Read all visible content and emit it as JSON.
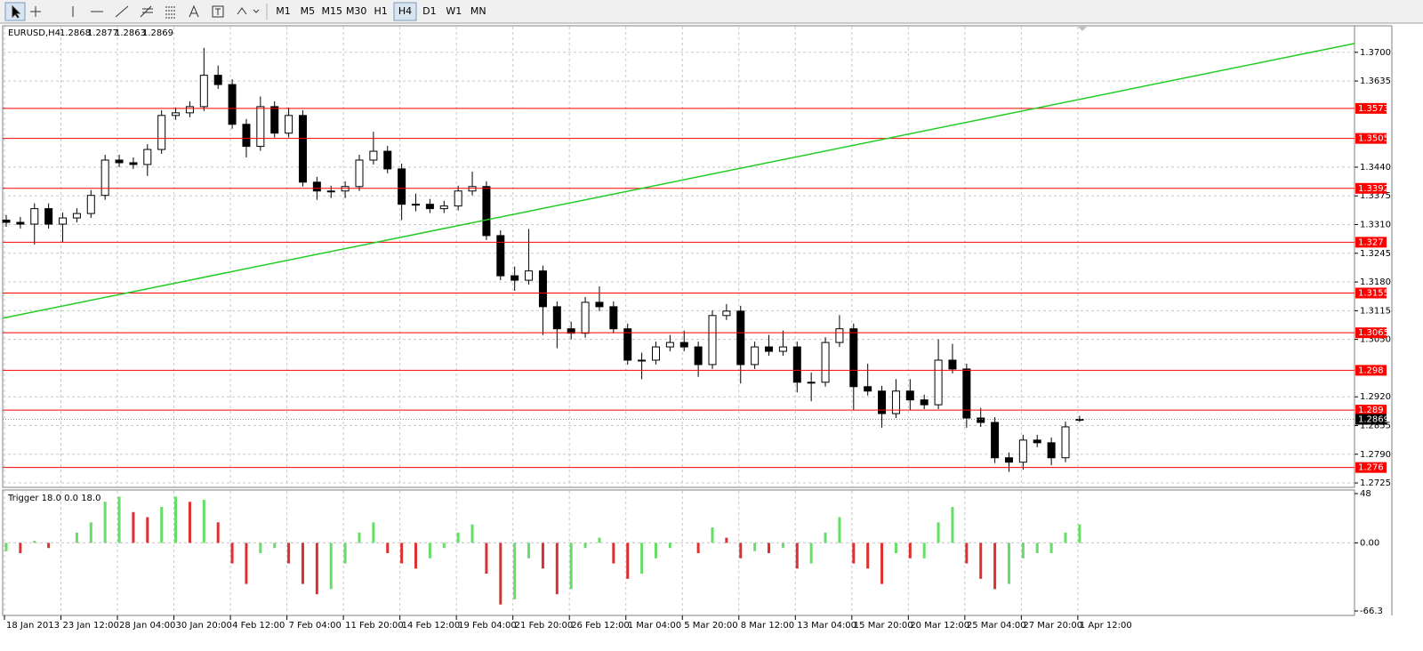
{
  "toolbar": {
    "timeframes": [
      {
        "label": "M1"
      },
      {
        "label": "M5"
      },
      {
        "label": "M15"
      },
      {
        "label": "M30"
      },
      {
        "label": "H1"
      },
      {
        "label": "H4",
        "selected": true
      },
      {
        "label": "D1"
      },
      {
        "label": "W1"
      },
      {
        "label": "MN"
      }
    ]
  },
  "chart_data": [
    {
      "type": "candlestick",
      "title": "EURUSD,H4",
      "bull_color": "#ffffff",
      "bear_color": "#000000",
      "wick_color": "#000000",
      "candles": {
        "open": [
          1.332,
          1.3315,
          1.3311,
          1.3346,
          1.3311,
          1.3325,
          1.3335,
          1.3376,
          1.3456,
          1.345,
          1.3446,
          1.348,
          1.3557,
          1.3563,
          1.3577,
          1.3648,
          1.3627,
          1.3537,
          1.3487,
          1.3577,
          1.3517,
          1.3557,
          1.3406,
          1.3386,
          1.3386,
          1.3396,
          1.3456,
          1.3476,
          1.3436,
          1.3356,
          1.3356,
          1.3346,
          1.3352,
          1.3386,
          1.3396,
          1.3285,
          1.3194,
          1.3184,
          1.3205,
          1.3124,
          1.3074,
          1.3064,
          1.3134,
          1.3124,
          1.3074,
          1.3003,
          1.3003,
          1.3033,
          1.3043,
          1.3033,
          1.2993,
          1.3104,
          1.3114,
          1.2993,
          1.3033,
          1.3023,
          1.3033,
          1.2953,
          1.2953,
          1.3043,
          1.3074,
          1.2943,
          1.2933,
          1.2882,
          1.2933,
          1.2913,
          1.2902,
          1.3003,
          1.2983,
          1.2872,
          1.2862,
          1.2782,
          1.2772,
          1.2822,
          1.2816,
          1.2782,
          1.2868
        ],
        "high": [
          1.3332,
          1.3327,
          1.3358,
          1.3358,
          1.3337,
          1.3347,
          1.3388,
          1.3468,
          1.3468,
          1.3462,
          1.3492,
          1.3569,
          1.3575,
          1.3589,
          1.371,
          1.367,
          1.3639,
          1.3549,
          1.36,
          1.3589,
          1.3575,
          1.3569,
          1.3418,
          1.3398,
          1.3408,
          1.3468,
          1.352,
          1.3488,
          1.3448,
          1.338,
          1.3368,
          1.3364,
          1.3398,
          1.343,
          1.3408,
          1.3297,
          1.3215,
          1.33,
          1.3217,
          1.3136,
          1.309,
          1.3146,
          1.317,
          1.3136,
          1.3086,
          1.302,
          1.3045,
          1.306,
          1.307,
          1.3045,
          1.3116,
          1.313,
          1.3126,
          1.3045,
          1.306,
          1.307,
          1.3045,
          1.2975,
          1.3055,
          1.3105,
          1.3086,
          1.2995,
          1.2945,
          1.296,
          1.296,
          1.2925,
          1.305,
          1.304,
          1.2995,
          1.2895,
          1.2874,
          1.2794,
          1.2834,
          1.2834,
          1.2828,
          1.2864,
          1.2877
        ],
        "low": [
          1.3305,
          1.3301,
          1.3265,
          1.3301,
          1.327,
          1.3315,
          1.3325,
          1.3366,
          1.344,
          1.3436,
          1.342,
          1.347,
          1.3547,
          1.3553,
          1.3567,
          1.3617,
          1.3527,
          1.3462,
          1.3477,
          1.3507,
          1.3507,
          1.3396,
          1.3366,
          1.337,
          1.337,
          1.3386,
          1.3446,
          1.3426,
          1.332,
          1.334,
          1.3336,
          1.3336,
          1.3342,
          1.3376,
          1.3275,
          1.3184,
          1.316,
          1.3174,
          1.306,
          1.303,
          1.305,
          1.3054,
          1.3114,
          1.3064,
          1.2993,
          1.296,
          1.2993,
          1.3023,
          1.3023,
          1.2965,
          1.2983,
          1.3094,
          1.295,
          1.2983,
          1.3013,
          1.3013,
          1.293,
          1.291,
          1.2943,
          1.3033,
          1.289,
          1.2923,
          1.285,
          1.2872,
          1.289,
          1.2892,
          1.2892,
          1.2973,
          1.285,
          1.2852,
          1.277,
          1.275,
          1.2755,
          1.2806,
          1.2765,
          1.2772,
          1.2863
        ],
        "close": [
          1.3315,
          1.3311,
          1.3346,
          1.3311,
          1.3325,
          1.3335,
          1.3376,
          1.3456,
          1.345,
          1.3446,
          1.348,
          1.3557,
          1.3563,
          1.3577,
          1.3648,
          1.3627,
          1.3537,
          1.3487,
          1.3577,
          1.3517,
          1.3557,
          1.3406,
          1.3386,
          1.3386,
          1.3396,
          1.3456,
          1.3476,
          1.3436,
          1.3356,
          1.3356,
          1.3346,
          1.3352,
          1.3386,
          1.3396,
          1.3285,
          1.3194,
          1.3184,
          1.3205,
          1.3124,
          1.3074,
          1.3064,
          1.3134,
          1.3124,
          1.3074,
          1.3003,
          1.3003,
          1.3033,
          1.3043,
          1.3033,
          1.2993,
          1.3104,
          1.3114,
          1.2993,
          1.3033,
          1.3023,
          1.3033,
          1.2953,
          1.2953,
          1.3043,
          1.3074,
          1.2943,
          1.2933,
          1.2882,
          1.2933,
          1.2913,
          1.2902,
          1.3003,
          1.2983,
          1.2872,
          1.2862,
          1.2782,
          1.2772,
          1.2822,
          1.2816,
          1.2782,
          1.2852,
          1.2869
        ]
      },
      "ylim": [
        1.2715,
        1.3758
      ],
      "yticks": [
        {
          "value": 1.37,
          "label": "1.3700"
        },
        {
          "value": 1.3635,
          "label": "1.3635"
        },
        {
          "value": 1.344,
          "label": "1.3440"
        },
        {
          "value": 1.3375,
          "label": "1.3375"
        },
        {
          "value": 1.331,
          "label": "1.3310"
        },
        {
          "value": 1.3245,
          "label": "1.3245"
        },
        {
          "value": 1.318,
          "label": "1.3180"
        },
        {
          "value": 1.3115,
          "label": "1.3115"
        },
        {
          "value": 1.305,
          "label": "1.3050"
        },
        {
          "value": 1.292,
          "label": "1.2920"
        },
        {
          "value": 1.2855,
          "label": "1.2855"
        },
        {
          "value": 1.279,
          "label": "1.2790"
        },
        {
          "value": 1.2725,
          "label": "1.2725"
        }
      ],
      "levels": [
        1.3573,
        1.3505,
        1.3392,
        1.327,
        1.3155,
        1.3065,
        1.298,
        1.289,
        1.276
      ],
      "level_color": "#ff0000",
      "trendline": [
        1.3098,
        1.372
      ],
      "trendline_color": "#22cc22",
      "grid": true
    },
    {
      "type": "histogram",
      "title": "Trigger 18.0 0.0 18.0",
      "values": [
        -8,
        -10,
        2,
        -5,
        0,
        10,
        20,
        40,
        45,
        30,
        25,
        35,
        45,
        40,
        42,
        20,
        -20,
        -40,
        -10,
        -5,
        -20,
        -40,
        -50,
        -45,
        -20,
        10,
        20,
        -10,
        -20,
        -25,
        -15,
        -5,
        10,
        18,
        -30,
        -60,
        -55,
        -15,
        -25,
        -50,
        -45,
        -5,
        5,
        -20,
        -35,
        -30,
        -15,
        -5,
        0,
        -10,
        15,
        5,
        -15,
        -8,
        -10,
        -5,
        -25,
        -20,
        10,
        25,
        -20,
        -25,
        -40,
        -10,
        -15,
        -15,
        20,
        35,
        -20,
        -35,
        -45,
        -40,
        -15,
        -10,
        -10,
        10,
        18
      ],
      "up_color": "#66dd66",
      "down_color": "#dd3030",
      "ylim": [
        -66.3,
        48
      ],
      "yticks": [
        -66.3,
        {
          "value": 0,
          "label": "0.00"
        },
        48
      ],
      "x_labels": [
        "18 Jan 2013",
        "23 Jan 12:00",
        "28 Jan 04:00",
        "30 Jan 20:00",
        "4 Feb 12:00",
        "7 Feb 04:00",
        "11 Feb 20:00",
        "14 Feb 12:00",
        "19 Feb 04:00",
        "21 Feb 20:00",
        "26 Feb 12:00",
        "1 Mar 04:00",
        "5 Mar 20:00",
        "8 Mar 12:00",
        "13 Mar 04:00",
        "15 Mar 20:00",
        "20 Mar 12:00",
        "25 Mar 04:00",
        "27 Mar 20:00",
        "1 Apr 12:00"
      ]
    }
  ]
}
